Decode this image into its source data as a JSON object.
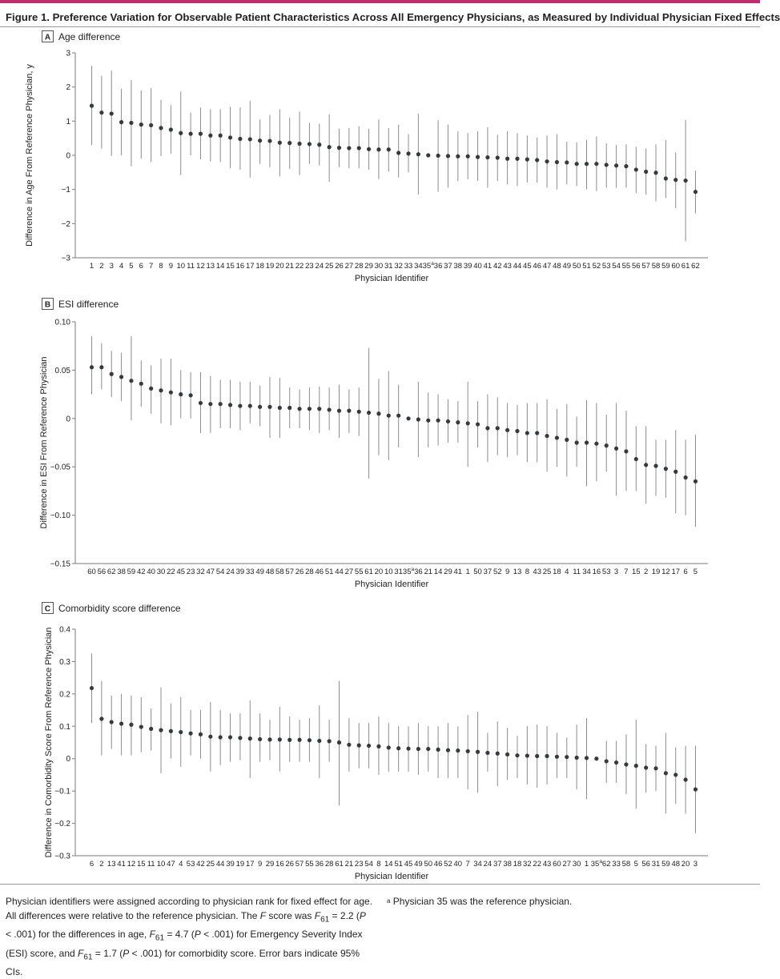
{
  "figure_title": "Figure 1. Preference Variation for Observable Patient Characteristics Across All Emergency Physicians, as Measured by Individual Physician Fixed Effects",
  "colors": {
    "accent": "#b8306d",
    "point": "#333a40",
    "bar": "#8c8c8c",
    "axis": "#7a7a7a"
  },
  "chart_data": [
    {
      "type": "scatter",
      "panel_letter": "A",
      "title": "Age difference",
      "xlabel": "Physician Identifier",
      "ylabel": "Difference in Age From Reference Physician, y",
      "ylim": [
        -3,
        3
      ],
      "yticks": [
        "3",
        "2",
        "1",
        "0",
        "−1",
        "−2",
        "−3"
      ],
      "ytick_values": [
        3,
        2,
        1,
        0,
        -1,
        -2,
        -3
      ],
      "categories": [
        "1",
        "2",
        "3",
        "4",
        "5",
        "6",
        "7",
        "8",
        "9",
        "10",
        "11",
        "12",
        "13",
        "14",
        "15",
        "16",
        "17",
        "18",
        "19",
        "20",
        "21",
        "22",
        "23",
        "24",
        "25",
        "26",
        "27",
        "28",
        "29",
        "30",
        "31",
        "32",
        "33",
        "34",
        "35a",
        "36",
        "37",
        "38",
        "39",
        "40",
        "41",
        "42",
        "43",
        "44",
        "45",
        "46",
        "47",
        "48",
        "49",
        "50",
        "51",
        "52",
        "53",
        "54",
        "55",
        "56",
        "57",
        "58",
        "59",
        "60",
        "61",
        "62"
      ],
      "values": [
        1.45,
        1.25,
        1.22,
        0.97,
        0.95,
        0.9,
        0.88,
        0.8,
        0.75,
        0.65,
        0.63,
        0.63,
        0.58,
        0.58,
        0.52,
        0.48,
        0.47,
        0.43,
        0.42,
        0.37,
        0.36,
        0.34,
        0.33,
        0.31,
        0.24,
        0.22,
        0.21,
        0.21,
        0.18,
        0.17,
        0.17,
        0.07,
        0.05,
        0.03,
        0.0,
        -0.01,
        -0.02,
        -0.03,
        -0.03,
        -0.05,
        -0.06,
        -0.07,
        -0.1,
        -0.1,
        -0.12,
        -0.14,
        -0.18,
        -0.2,
        -0.21,
        -0.25,
        -0.25,
        -0.25,
        -0.28,
        -0.3,
        -0.32,
        -0.42,
        -0.48,
        -0.51,
        -0.68,
        -0.72,
        -0.74,
        -1.07
      ],
      "lower": [
        0.3,
        0.2,
        -0.02,
        0.0,
        -0.32,
        -0.1,
        -0.2,
        -0.02,
        0.05,
        -0.58,
        0.0,
        -0.12,
        -0.18,
        -0.2,
        -0.38,
        -0.42,
        -0.65,
        -0.25,
        -0.35,
        -0.62,
        -0.4,
        -0.58,
        -0.25,
        -0.3,
        -0.78,
        -0.35,
        -0.38,
        -0.38,
        -0.42,
        -0.7,
        -0.48,
        -0.65,
        -0.5,
        -1.15,
        0.0,
        -1.07,
        -0.95,
        -0.75,
        -0.7,
        -0.75,
        -0.95,
        -0.75,
        -0.85,
        -0.9,
        -0.8,
        -0.8,
        -0.95,
        -1.0,
        -0.85,
        -0.9,
        -1.0,
        -1.05,
        -0.95,
        -0.95,
        -0.95,
        -1.1,
        -1.15,
        -1.35,
        -1.25,
        -1.55,
        -2.52,
        -1.7
      ],
      "upper": [
        2.62,
        2.32,
        2.48,
        1.95,
        2.2,
        1.9,
        1.97,
        1.62,
        1.47,
        1.87,
        1.25,
        1.4,
        1.35,
        1.35,
        1.42,
        1.4,
        1.6,
        1.05,
        1.18,
        1.35,
        1.1,
        1.28,
        0.95,
        0.92,
        1.2,
        0.78,
        0.8,
        0.85,
        0.78,
        1.05,
        0.8,
        0.9,
        0.62,
        1.22,
        0.0,
        1.03,
        0.9,
        0.7,
        0.65,
        0.7,
        0.82,
        0.6,
        0.7,
        0.65,
        0.58,
        0.52,
        0.58,
        0.62,
        0.4,
        0.38,
        0.45,
        0.55,
        0.35,
        0.3,
        0.32,
        0.25,
        0.2,
        0.32,
        0.45,
        0.08,
        1.03,
        -0.45
      ]
    },
    {
      "type": "scatter",
      "panel_letter": "B",
      "title": "ESI difference",
      "xlabel": "Physician Identifier",
      "ylabel": "Difference in ESI From Reference Physician",
      "ylim": [
        -0.15,
        0.1
      ],
      "yticks": [
        "0.10",
        "0.05",
        "0",
        "−0.05",
        "−0.10",
        "−0.15"
      ],
      "ytick_values": [
        0.1,
        0.05,
        0,
        -0.05,
        -0.1,
        -0.15
      ],
      "categories": [
        "60",
        "56",
        "62",
        "38",
        "59",
        "42",
        "40",
        "30",
        "22",
        "45",
        "23",
        "32",
        "47",
        "54",
        "24",
        "39",
        "33",
        "49",
        "48",
        "58",
        "57",
        "26",
        "28",
        "46",
        "51",
        "44",
        "27",
        "55",
        "61",
        "20",
        "10",
        "31",
        "35a",
        "36",
        "21",
        "14",
        "29",
        "41",
        "1",
        "50",
        "37",
        "52",
        "9",
        "13",
        "8",
        "43",
        "25",
        "18",
        "4",
        "11",
        "34",
        "16",
        "53",
        "3",
        "7",
        "15",
        "2",
        "19",
        "12",
        "17",
        "6",
        "5"
      ],
      "values": [
        0.053,
        0.053,
        0.046,
        0.043,
        0.039,
        0.036,
        0.031,
        0.029,
        0.027,
        0.025,
        0.024,
        0.016,
        0.015,
        0.015,
        0.014,
        0.013,
        0.013,
        0.012,
        0.012,
        0.011,
        0.011,
        0.01,
        0.01,
        0.01,
        0.009,
        0.008,
        0.008,
        0.007,
        0.006,
        0.005,
        0.003,
        0.003,
        0.0,
        -0.001,
        -0.002,
        -0.002,
        -0.003,
        -0.004,
        -0.005,
        -0.006,
        -0.01,
        -0.01,
        -0.012,
        -0.013,
        -0.015,
        -0.015,
        -0.018,
        -0.02,
        -0.022,
        -0.025,
        -0.025,
        -0.026,
        -0.028,
        -0.031,
        -0.034,
        -0.042,
        -0.048,
        -0.049,
        -0.052,
        -0.055,
        -0.061,
        -0.065
      ],
      "lower": [
        0.025,
        0.03,
        0.022,
        0.018,
        -0.002,
        0.012,
        0.005,
        -0.005,
        -0.007,
        0.0,
        0.0,
        -0.015,
        -0.015,
        -0.01,
        -0.01,
        -0.012,
        -0.005,
        -0.008,
        -0.02,
        -0.02,
        -0.01,
        -0.01,
        -0.012,
        -0.015,
        -0.012,
        -0.02,
        -0.015,
        -0.018,
        -0.062,
        -0.038,
        -0.043,
        -0.03,
        0.0,
        -0.04,
        -0.03,
        -0.028,
        -0.025,
        -0.025,
        -0.05,
        -0.03,
        -0.045,
        -0.038,
        -0.04,
        -0.038,
        -0.045,
        -0.045,
        -0.055,
        -0.05,
        -0.06,
        -0.05,
        -0.07,
        -0.065,
        -0.055,
        -0.08,
        -0.075,
        -0.075,
        -0.088,
        -0.08,
        -0.082,
        -0.098,
        -0.1,
        -0.112
      ],
      "upper": [
        0.085,
        0.078,
        0.07,
        0.068,
        0.085,
        0.06,
        0.055,
        0.062,
        0.062,
        0.05,
        0.048,
        0.048,
        0.044,
        0.04,
        0.04,
        0.038,
        0.038,
        0.034,
        0.043,
        0.042,
        0.032,
        0.03,
        0.032,
        0.033,
        0.032,
        0.035,
        0.03,
        0.032,
        0.073,
        0.041,
        0.049,
        0.035,
        0.0,
        0.038,
        0.027,
        0.025,
        0.02,
        0.018,
        0.038,
        0.018,
        0.025,
        0.022,
        0.016,
        0.014,
        0.016,
        0.016,
        0.02,
        0.01,
        0.015,
        0.002,
        0.019,
        0.016,
        0.004,
        0.016,
        0.008,
        -0.008,
        -0.008,
        -0.022,
        -0.022,
        -0.012,
        -0.022,
        -0.017
      ]
    },
    {
      "type": "scatter",
      "panel_letter": "C",
      "title": "Comorbidity score difference",
      "xlabel": "Physician Identifier",
      "ylabel": "Difference in Comorbidity Score From Reference Physician",
      "ylim": [
        -0.3,
        0.4
      ],
      "yticks": [
        "0.4",
        "0.3",
        "0.2",
        "0.1",
        "0",
        "−0.1",
        "−0.2",
        "−0.3"
      ],
      "ytick_values": [
        0.4,
        0.3,
        0.2,
        0.1,
        0,
        -0.1,
        -0.2,
        -0.3
      ],
      "categories": [
        "6",
        "2",
        "13",
        "41",
        "12",
        "15",
        "11",
        "10",
        "47",
        "4",
        "53",
        "42",
        "25",
        "44",
        "39",
        "19",
        "17",
        "9",
        "29",
        "16",
        "26",
        "57",
        "55",
        "36",
        "28",
        "61",
        "21",
        "23",
        "54",
        "8",
        "14",
        "51",
        "45",
        "49",
        "50",
        "46",
        "52",
        "40",
        "7",
        "34",
        "24",
        "37",
        "38",
        "18",
        "32",
        "22",
        "43",
        "60",
        "27",
        "30",
        "1",
        "35a",
        "62",
        "33",
        "58",
        "5",
        "56",
        "31",
        "59",
        "48",
        "20",
        "3"
      ],
      "values": [
        0.218,
        0.123,
        0.113,
        0.108,
        0.105,
        0.098,
        0.092,
        0.088,
        0.085,
        0.082,
        0.078,
        0.075,
        0.068,
        0.066,
        0.066,
        0.064,
        0.062,
        0.06,
        0.059,
        0.059,
        0.058,
        0.058,
        0.057,
        0.055,
        0.054,
        0.05,
        0.043,
        0.041,
        0.04,
        0.038,
        0.034,
        0.032,
        0.031,
        0.03,
        0.03,
        0.028,
        0.026,
        0.025,
        0.023,
        0.021,
        0.018,
        0.016,
        0.013,
        0.01,
        0.009,
        0.008,
        0.008,
        0.006,
        0.005,
        0.003,
        0.002,
        0.0,
        -0.008,
        -0.012,
        -0.018,
        -0.022,
        -0.028,
        -0.03,
        -0.045,
        -0.05,
        -0.065,
        -0.095
      ],
      "lower": [
        0.11,
        0.01,
        0.03,
        0.01,
        0.01,
        0.02,
        0.025,
        -0.045,
        0.0,
        -0.025,
        0.01,
        0.0,
        -0.04,
        -0.02,
        -0.01,
        -0.005,
        -0.06,
        -0.01,
        -0.005,
        -0.04,
        -0.01,
        -0.01,
        -0.01,
        -0.06,
        -0.01,
        -0.145,
        -0.04,
        -0.03,
        -0.03,
        -0.05,
        -0.04,
        -0.04,
        -0.04,
        -0.05,
        -0.04,
        -0.06,
        -0.06,
        -0.06,
        -0.095,
        -0.105,
        -0.04,
        -0.085,
        -0.065,
        -0.06,
        -0.08,
        -0.09,
        -0.08,
        -0.06,
        -0.06,
        -0.095,
        -0.125,
        0.0,
        -0.075,
        -0.075,
        -0.11,
        -0.155,
        -0.105,
        -0.1,
        -0.17,
        -0.14,
        -0.17,
        -0.23
      ],
      "upper": [
        0.325,
        0.24,
        0.195,
        0.2,
        0.195,
        0.19,
        0.155,
        0.22,
        0.17,
        0.19,
        0.15,
        0.15,
        0.175,
        0.15,
        0.14,
        0.14,
        0.18,
        0.14,
        0.12,
        0.16,
        0.13,
        0.12,
        0.125,
        0.165,
        0.12,
        0.24,
        0.125,
        0.11,
        0.11,
        0.13,
        0.11,
        0.1,
        0.1,
        0.11,
        0.1,
        0.1,
        0.11,
        0.1,
        0.135,
        0.145,
        0.08,
        0.115,
        0.095,
        0.07,
        0.1,
        0.105,
        0.1,
        0.08,
        0.065,
        0.105,
        0.125,
        0.0,
        0.055,
        0.055,
        0.075,
        0.12,
        0.045,
        0.04,
        0.08,
        0.035,
        0.04,
        0.04
      ]
    }
  ],
  "notes": {
    "line1": "Physician identifiers were assigned according to physician rank for fixed effect for age. All differences were relative to the reference physician. The ",
    "f_italic": "F",
    "line2": " score was ",
    "stat1": "F",
    "sub1": "61",
    "val1": " = 2.2 (",
    "p1": "P",
    "val1b": " < .001) for the differences in age, ",
    "stat2": "F",
    "sub2": "61",
    "val2": " = 4.7 (",
    "p2": "P",
    "val2b": " < .001) for Emergency Severity Index (ESI) score, and ",
    "stat3": "F",
    "sub3": "61",
    "val3": " = 1.7 (",
    "p3": "P",
    "val3b": " < .001) for comorbidity score. Error bars indicate 95% CIs."
  },
  "footnote": {
    "marker": "a",
    "text": "Physician 35 was the reference physician."
  }
}
